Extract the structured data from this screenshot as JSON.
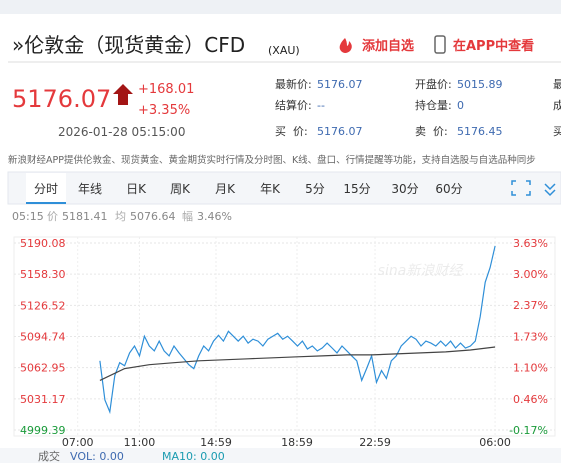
{
  "header": {
    "title": "»伦敦金（现货黄金）CFD",
    "code": "(XAU)",
    "actions": [
      "添加自选",
      "在APP中查看"
    ]
  },
  "quote": {
    "price": "5176.07",
    "change": "+168.01",
    "change_pct": "+3.35%",
    "time": "2026-01-28 05:15:00",
    "fields": [
      {
        "label": "最新价:",
        "value": "5176.07"
      },
      {
        "label": "开盘价:",
        "value": "5015.89"
      },
      {
        "label": "结算价:",
        "value": "--"
      },
      {
        "label": "持仓量:",
        "value": "0"
      },
      {
        "label": "买  价:",
        "value": "5176.07"
      },
      {
        "label": "卖  价:",
        "value": "5176.45"
      }
    ],
    "cut_labels": [
      "最",
      "成",
      "买"
    ]
  },
  "notice": "新浪财经APP提供伦敦金、现货黄金、黄金期货实时行情及分时图、K线、盘口、行情提醒等功能，支持自选股与自选品种同步",
  "tabs": [
    "分时",
    "年线",
    "日K",
    "周K",
    "月K",
    "年K",
    "5分",
    "15分",
    "30分",
    "60分"
  ],
  "info": {
    "time": "05:15",
    "price_label": "价",
    "price": "5181.41",
    "avg_label": "均",
    "avg": "5076.64",
    "range_label": "幅",
    "range": "3.46%"
  },
  "watermark": "sina新浪财经",
  "chart_data": {
    "type": "line",
    "ylim": [
      4999.39,
      5190.08
    ],
    "yticks": [
      4999.39,
      5031.17,
      {
        "value": 5062.95,
        "label": "5062.95"
      },
      5094.74,
      5126.52,
      {
        "value": 5158.3,
        "label": "5158.30"
      },
      5190.08
    ],
    "y2lim": [
      -0.17,
      3.63
    ],
    "y2ticks": [
      {
        "value": -0.17,
        "label": "-0.17%"
      },
      {
        "value": 0.46,
        "label": "0.46%"
      },
      {
        "value": 1.1,
        "label": "1.10%"
      },
      {
        "value": 1.73,
        "label": "1.73%"
      },
      {
        "value": 2.37,
        "label": "2.37%"
      },
      {
        "value": 3.0,
        "label": "3.00%"
      },
      {
        "value": 3.63,
        "label": "3.63%"
      }
    ],
    "xlim": [
      -17.4,
      81
    ],
    "xticks": [
      {
        "value": -4.5,
        "label": "07:00"
      },
      {
        "value": 8,
        "label": "11:00"
      },
      {
        "value": 23.5,
        "label": "14:59"
      },
      {
        "value": 39.9,
        "label": "18:59"
      },
      {
        "value": 55.7,
        "label": "22:59"
      },
      {
        "value": 80,
        "label": "06:00"
      }
    ],
    "grid": true,
    "up_color": "#e4393c",
    "down_color": "#1a9b3a",
    "series": [
      {
        "color": "#2f8fd8",
        "x": [
          0,
          1,
          2,
          3,
          4,
          5,
          6,
          7,
          8,
          9,
          10,
          11,
          12,
          13,
          14,
          15,
          16,
          17,
          18,
          19,
          20,
          21,
          22,
          23,
          24,
          25,
          26,
          27,
          28,
          29,
          30,
          31,
          32,
          33,
          34,
          35,
          36,
          37,
          38,
          39,
          40,
          41,
          42,
          43,
          44,
          45,
          46,
          47,
          48,
          49,
          50,
          51,
          52,
          53,
          54,
          55,
          56,
          57,
          58,
          59,
          60,
          61,
          62,
          63,
          64,
          65,
          66,
          67,
          68,
          69,
          70,
          71,
          72,
          73,
          74,
          75,
          76,
          77,
          78,
          79,
          80
        ],
        "values": [
          5070,
          5030,
          5018,
          5055,
          5068,
          5065,
          5078,
          5085,
          5075,
          5095,
          5085,
          5080,
          5090,
          5080,
          5075,
          5085,
          5078,
          5072,
          5066,
          5062,
          5075,
          5085,
          5080,
          5090,
          5096,
          5090,
          5100,
          5095,
          5090,
          5095,
          5088,
          5092,
          5090,
          5085,
          5092,
          5095,
          5098,
          5092,
          5095,
          5090,
          5085,
          5090,
          5082,
          5085,
          5080,
          5083,
          5088,
          5083,
          5078,
          5085,
          5080,
          5075,
          5070,
          5050,
          5062,
          5075,
          5048,
          5060,
          5052,
          5070,
          5075,
          5085,
          5090,
          5095,
          5092,
          5085,
          5090,
          5088,
          5085,
          5090,
          5085,
          5090,
          5083,
          5088,
          5083,
          5085,
          5090,
          5115,
          5150,
          5165,
          5187
        ]
      },
      {
        "color": "#444444",
        "x": [
          0,
          5,
          10,
          15,
          20,
          25,
          30,
          35,
          40,
          45,
          50,
          55,
          60,
          65,
          70,
          75,
          80
        ],
        "values": [
          5050,
          5062,
          5066,
          5068,
          5070,
          5071,
          5072,
          5073,
          5074,
          5075,
          5076,
          5076,
          5077,
          5078,
          5079,
          5081,
          5084
        ]
      }
    ]
  },
  "footer": {
    "label": "成交",
    "vol": "VOL: 0.00",
    "ma": "MA10: 0.00"
  }
}
